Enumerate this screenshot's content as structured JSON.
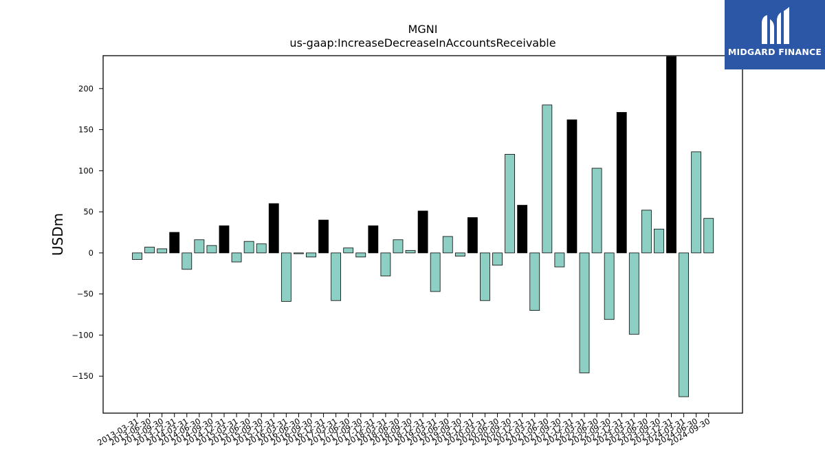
{
  "brand": {
    "name": "MIDGARD FINANCE",
    "color": "#2b57a6"
  },
  "chart_data": {
    "type": "bar",
    "title": "MGNI",
    "subtitle": "us-gaap:IncreaseDecreaseInAccountsReceivable",
    "xlabel": "",
    "ylabel": "USDm",
    "ylim": [
      -195,
      240
    ],
    "yticks": [
      -150,
      -100,
      -50,
      0,
      50,
      100,
      150,
      200
    ],
    "colors": {
      "quarter": "#8ecfc4",
      "annual": "#000000",
      "edge": "#000000"
    },
    "categories": [
      "2013-03-31",
      "2013-06-30",
      "2013-09-30",
      "2013-12-31",
      "2014-03-31",
      "2014-06-30",
      "2014-09-30",
      "2014-12-31",
      "2015-03-31",
      "2015-06-30",
      "2015-09-30",
      "2015-12-31",
      "2016-03-31",
      "2016-06-30",
      "2016-09-30",
      "2016-12-31",
      "2017-03-31",
      "2017-06-30",
      "2017-09-30",
      "2017-12-31",
      "2018-03-31",
      "2018-06-30",
      "2018-09-30",
      "2018-12-31",
      "2019-03-31",
      "2019-06-30",
      "2019-09-30",
      "2019-12-31",
      "2020-03-31",
      "2020-06-30",
      "2020-09-30",
      "2020-12-31",
      "2021-03-31",
      "2021-06-30",
      "2021-09-30",
      "2021-12-31",
      "2022-03-31",
      "2022-06-30",
      "2022-09-30",
      "2022-12-31",
      "2023-03-31",
      "2023-06-30",
      "2023-09-30",
      "2023-12-31",
      "2024-03-31",
      "2024-06-30",
      "2024-09-30"
    ],
    "values": [
      -8,
      7,
      5,
      25,
      -20,
      16,
      9,
      33,
      -11,
      14,
      11,
      60,
      -59,
      -1,
      -5,
      40,
      -58,
      6,
      -5,
      33,
      -28,
      16,
      3,
      51,
      -47,
      20,
      -4,
      43,
      -58,
      -15,
      120,
      58,
      -70,
      180,
      -17,
      162,
      -146,
      103,
      -81,
      171,
      -99,
      52,
      29,
      239,
      -175,
      123,
      42
    ],
    "annual": [
      false,
      false,
      false,
      true,
      false,
      false,
      false,
      true,
      false,
      false,
      false,
      true,
      false,
      false,
      false,
      true,
      false,
      false,
      false,
      true,
      false,
      false,
      false,
      true,
      false,
      false,
      false,
      true,
      false,
      false,
      false,
      true,
      false,
      false,
      false,
      true,
      false,
      false,
      false,
      true,
      false,
      false,
      false,
      true,
      false,
      false,
      false
    ]
  }
}
